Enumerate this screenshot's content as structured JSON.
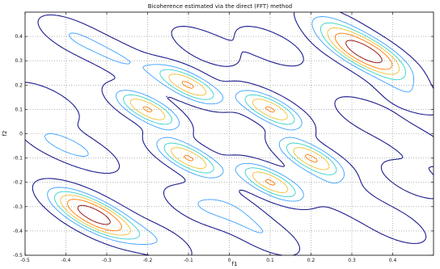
{
  "chart_data": {
    "type": "contour",
    "title": "Bicoherence estimated via the direct (FFT) method",
    "xlabel": "f1",
    "ylabel": "f2",
    "xlim": [
      -0.5,
      0.5
    ],
    "ylim": [
      -0.5,
      0.5
    ],
    "x_ticks": [
      "-0.5",
      "-0.4",
      "-0.3",
      "-0.2",
      "-0.1",
      "0",
      "0.1",
      "0.2",
      "0.3",
      "0.4"
    ],
    "y_ticks": [
      "0.4",
      "0.3",
      "0.2",
      "0.1",
      "0",
      "-0.1",
      "-0.2",
      "-0.3",
      "-0.4",
      "-0.5"
    ],
    "grid": true,
    "levels": [
      {
        "level": 1,
        "color": "#1c1c8c"
      },
      {
        "level": 2,
        "color": "#3aa0ff"
      },
      {
        "level": 3,
        "color": "#35d2c8"
      },
      {
        "level": 4,
        "color": "#f0c030"
      },
      {
        "level": 5,
        "color": "#ff7a00"
      },
      {
        "level": 6,
        "color": "#8b0000"
      }
    ],
    "peaks": [
      {
        "f1": 0.333,
        "f2": 0.333,
        "max_level": 6
      },
      {
        "f1": -0.333,
        "f2": -0.333,
        "max_level": 6
      },
      {
        "f1": -0.1,
        "f2": 0.2,
        "max_level": 4
      },
      {
        "f1": -0.2,
        "f2": 0.1,
        "max_level": 4
      },
      {
        "f1": 0.1,
        "f2": 0.1,
        "max_level": 4
      },
      {
        "f1": -0.1,
        "f2": -0.1,
        "max_level": 4
      },
      {
        "f1": 0.1,
        "f2": -0.2,
        "max_level": 4
      },
      {
        "f1": 0.2,
        "f2": -0.1,
        "max_level": 4
      }
    ]
  }
}
